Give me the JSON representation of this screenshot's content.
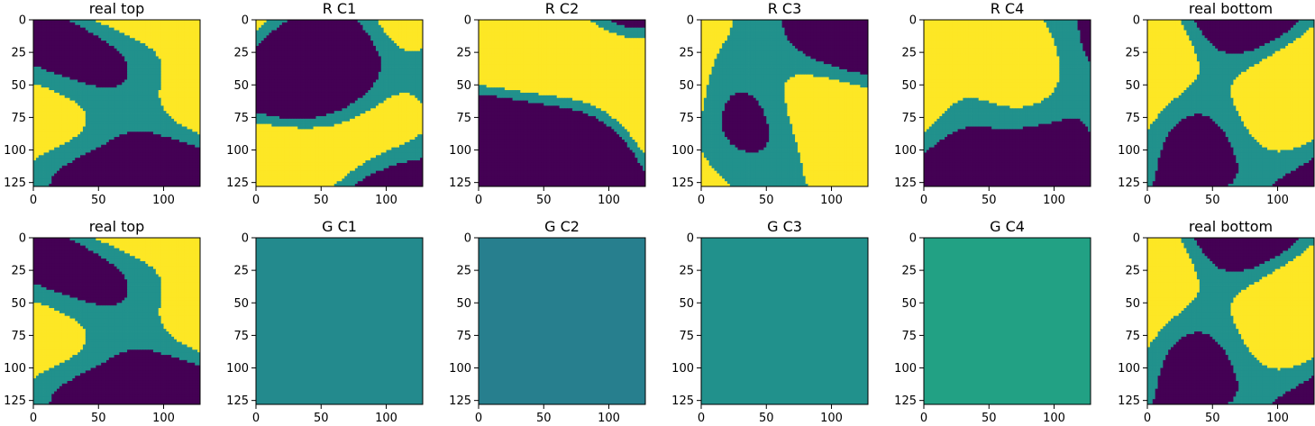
{
  "figure": {
    "colors": {
      "purple": "#440154",
      "teal": "#21918c",
      "yellow": "#fde725",
      "frame": "#000000"
    }
  },
  "chart_data": [
    {
      "type": "heatmap",
      "title": "real top",
      "kind": "real",
      "seed": 11,
      "xticks": [
        0,
        50,
        100
      ],
      "yticks": [
        0,
        25,
        50,
        75,
        100,
        125
      ],
      "xlim": [
        0,
        128
      ],
      "ylim": [
        128,
        0
      ]
    },
    {
      "type": "heatmap",
      "title": "R C1",
      "kind": "real",
      "seed": 23,
      "xticks": [
        0,
        50,
        100
      ],
      "yticks": [
        0,
        25,
        50,
        75,
        100,
        125
      ],
      "xlim": [
        0,
        128
      ],
      "ylim": [
        128,
        0
      ]
    },
    {
      "type": "heatmap",
      "title": "R C2",
      "kind": "real",
      "seed": 37,
      "xticks": [
        0,
        50,
        100
      ],
      "yticks": [
        0,
        25,
        50,
        75,
        100,
        125
      ],
      "xlim": [
        0,
        128
      ],
      "ylim": [
        128,
        0
      ]
    },
    {
      "type": "heatmap",
      "title": "R C3",
      "kind": "real",
      "seed": 41,
      "xticks": [
        0,
        50,
        100
      ],
      "yticks": [
        0,
        25,
        50,
        75,
        100,
        125
      ],
      "xlim": [
        0,
        128
      ],
      "ylim": [
        128,
        0
      ]
    },
    {
      "type": "heatmap",
      "title": "R C4",
      "kind": "real",
      "seed": 53,
      "xticks": [
        0,
        50,
        100
      ],
      "yticks": [
        0,
        25,
        50,
        75,
        100,
        125
      ],
      "xlim": [
        0,
        128
      ],
      "ylim": [
        128,
        0
      ]
    },
    {
      "type": "heatmap",
      "title": "real bottom",
      "kind": "real",
      "seed": 67,
      "xticks": [
        0,
        50,
        100
      ],
      "yticks": [
        0,
        25,
        50,
        75,
        100,
        125
      ],
      "xlim": [
        0,
        128
      ],
      "ylim": [
        128,
        0
      ]
    },
    {
      "type": "heatmap",
      "title": "real top",
      "kind": "real",
      "seed": 11,
      "xticks": [
        0,
        50,
        100
      ],
      "yticks": [
        0,
        25,
        50,
        75,
        100,
        125
      ],
      "xlim": [
        0,
        128
      ],
      "ylim": [
        128,
        0
      ]
    },
    {
      "type": "heatmap",
      "title": "G C1",
      "kind": "generated",
      "fill": "#238a8d",
      "xticks": [
        0,
        50,
        100
      ],
      "yticks": [
        0,
        25,
        50,
        75,
        100,
        125
      ],
      "xlim": [
        0,
        128
      ],
      "ylim": [
        128,
        0
      ]
    },
    {
      "type": "heatmap",
      "title": "G C2",
      "kind": "generated",
      "fill": "#277f8e",
      "xticks": [
        0,
        50,
        100
      ],
      "yticks": [
        0,
        25,
        50,
        75,
        100,
        125
      ],
      "xlim": [
        0,
        128
      ],
      "ylim": [
        128,
        0
      ]
    },
    {
      "type": "heatmap",
      "title": "G C3",
      "kind": "generated",
      "fill": "#21918c",
      "xticks": [
        0,
        50,
        100
      ],
      "yticks": [
        0,
        25,
        50,
        75,
        100,
        125
      ],
      "xlim": [
        0,
        128
      ],
      "ylim": [
        128,
        0
      ]
    },
    {
      "type": "heatmap",
      "title": "G C4",
      "kind": "generated",
      "fill": "#22a184",
      "xticks": [
        0,
        50,
        100
      ],
      "yticks": [
        0,
        25,
        50,
        75,
        100,
        125
      ],
      "xlim": [
        0,
        128
      ],
      "ylim": [
        128,
        0
      ]
    },
    {
      "type": "heatmap",
      "title": "real bottom",
      "kind": "real",
      "seed": 67,
      "xticks": [
        0,
        50,
        100
      ],
      "yticks": [
        0,
        25,
        50,
        75,
        100,
        125
      ],
      "xlim": [
        0,
        128
      ],
      "ylim": [
        128,
        0
      ]
    }
  ]
}
